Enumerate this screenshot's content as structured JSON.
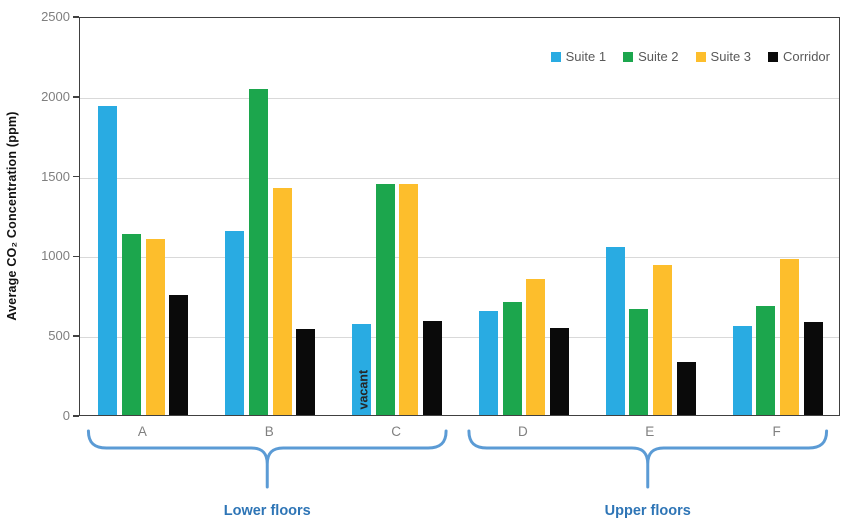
{
  "chart_data": {
    "type": "bar",
    "title": "",
    "ylabel": "Average CO₂ Concentration (ppm)",
    "xlabel": "",
    "categories": [
      "A",
      "B",
      "C",
      "D",
      "E",
      "F"
    ],
    "series": [
      {
        "name": "Suite 1",
        "color": "#29ABE2",
        "values": [
          1935,
          1155,
          570,
          650,
          1055,
          560
        ]
      },
      {
        "name": "Suite 2",
        "color": "#1CA64D",
        "values": [
          1135,
          2040,
          1445,
          710,
          665,
          685
        ]
      },
      {
        "name": "Suite 3",
        "color": "#FDBE2C",
        "values": [
          1105,
          1425,
          1445,
          850,
          940,
          980
        ]
      },
      {
        "name": "Corridor",
        "color": "#0A0A0A",
        "values": [
          755,
          540,
          590,
          545,
          330,
          585
        ]
      }
    ],
    "ylim": [
      0,
      2500
    ],
    "yticks": [
      0,
      500,
      1000,
      1500,
      2000,
      2500
    ],
    "grid": "horizontal",
    "legend_position": "top-right-inside",
    "annotations": [
      {
        "text": "vacant",
        "category": "C",
        "series": "Suite 1",
        "orientation": "vertical"
      }
    ],
    "group_labels": [
      {
        "text": "Lower floors",
        "categories": [
          "A",
          "B",
          "C"
        ]
      },
      {
        "text": "Upper floors",
        "categories": [
          "D",
          "E",
          "F"
        ]
      }
    ],
    "colors": {
      "brace": "#5B9BD5",
      "group_label_text": "#2E75B6",
      "axis_text": "#7F7F7F",
      "legend_text": "#595959",
      "axis_line": "#404040",
      "gridline": "#D9D9D9"
    }
  }
}
